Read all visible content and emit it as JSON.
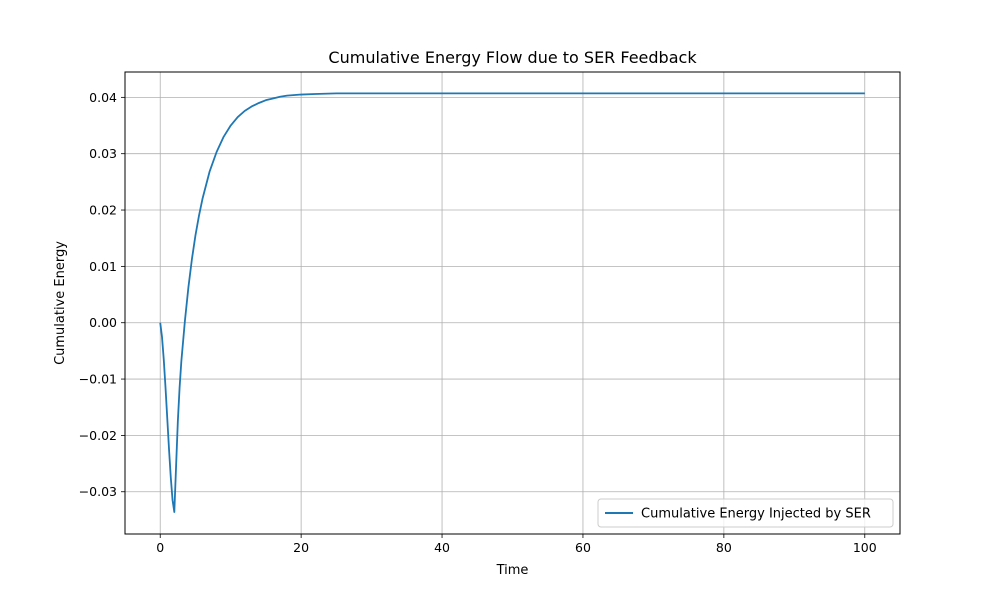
{
  "chart_data": {
    "type": "line",
    "title": "Cumulative Energy Flow due to SER Feedback",
    "xlabel": "Time",
    "ylabel": "Cumulative Energy",
    "xlim": [
      -5,
      105
    ],
    "ylim": [
      -0.0375,
      0.0445
    ],
    "xticks": [
      0,
      20,
      40,
      60,
      80,
      100
    ],
    "yticks": [
      -0.03,
      -0.02,
      -0.01,
      0.0,
      0.01,
      0.02,
      0.03,
      0.04
    ],
    "xtick_labels": [
      "0",
      "20",
      "40",
      "60",
      "80",
      "100"
    ],
    "ytick_labels": [
      "−0.03",
      "−0.02",
      "−0.01",
      "0.00",
      "0.01",
      "0.02",
      "0.03",
      "0.04"
    ],
    "grid": true,
    "legend_position": "lower right",
    "series": [
      {
        "name": "Cumulative Energy Injected by SER",
        "color": "#1f77b4",
        "x": [
          0,
          0.25,
          0.5,
          0.75,
          1.0,
          1.25,
          1.5,
          1.75,
          2.0,
          2.25,
          2.5,
          2.75,
          3.0,
          3.5,
          4.0,
          4.5,
          5.0,
          5.5,
          6.0,
          7.0,
          8.0,
          9.0,
          10.0,
          11.0,
          12.0,
          13.0,
          14.0,
          15.0,
          16.0,
          17.0,
          18.0,
          20.0,
          22.0,
          25.0,
          30.0,
          40.0,
          50.0,
          60.0,
          70.0,
          80.0,
          90.0,
          100.0
        ],
        "y": [
          0.0,
          -0.0025,
          -0.0065,
          -0.0115,
          -0.017,
          -0.0225,
          -0.0275,
          -0.0315,
          -0.0336,
          -0.0255,
          -0.0175,
          -0.0115,
          -0.0068,
          0.0003,
          0.0063,
          0.0113,
          0.0155,
          0.019,
          0.022,
          0.0268,
          0.0303,
          0.033,
          0.035,
          0.0365,
          0.0376,
          0.0384,
          0.039,
          0.0395,
          0.0398,
          0.0401,
          0.0403,
          0.0405,
          0.0406,
          0.0407,
          0.0407,
          0.0407,
          0.0407,
          0.0407,
          0.0407,
          0.0407,
          0.0407,
          0.0407
        ]
      }
    ]
  }
}
